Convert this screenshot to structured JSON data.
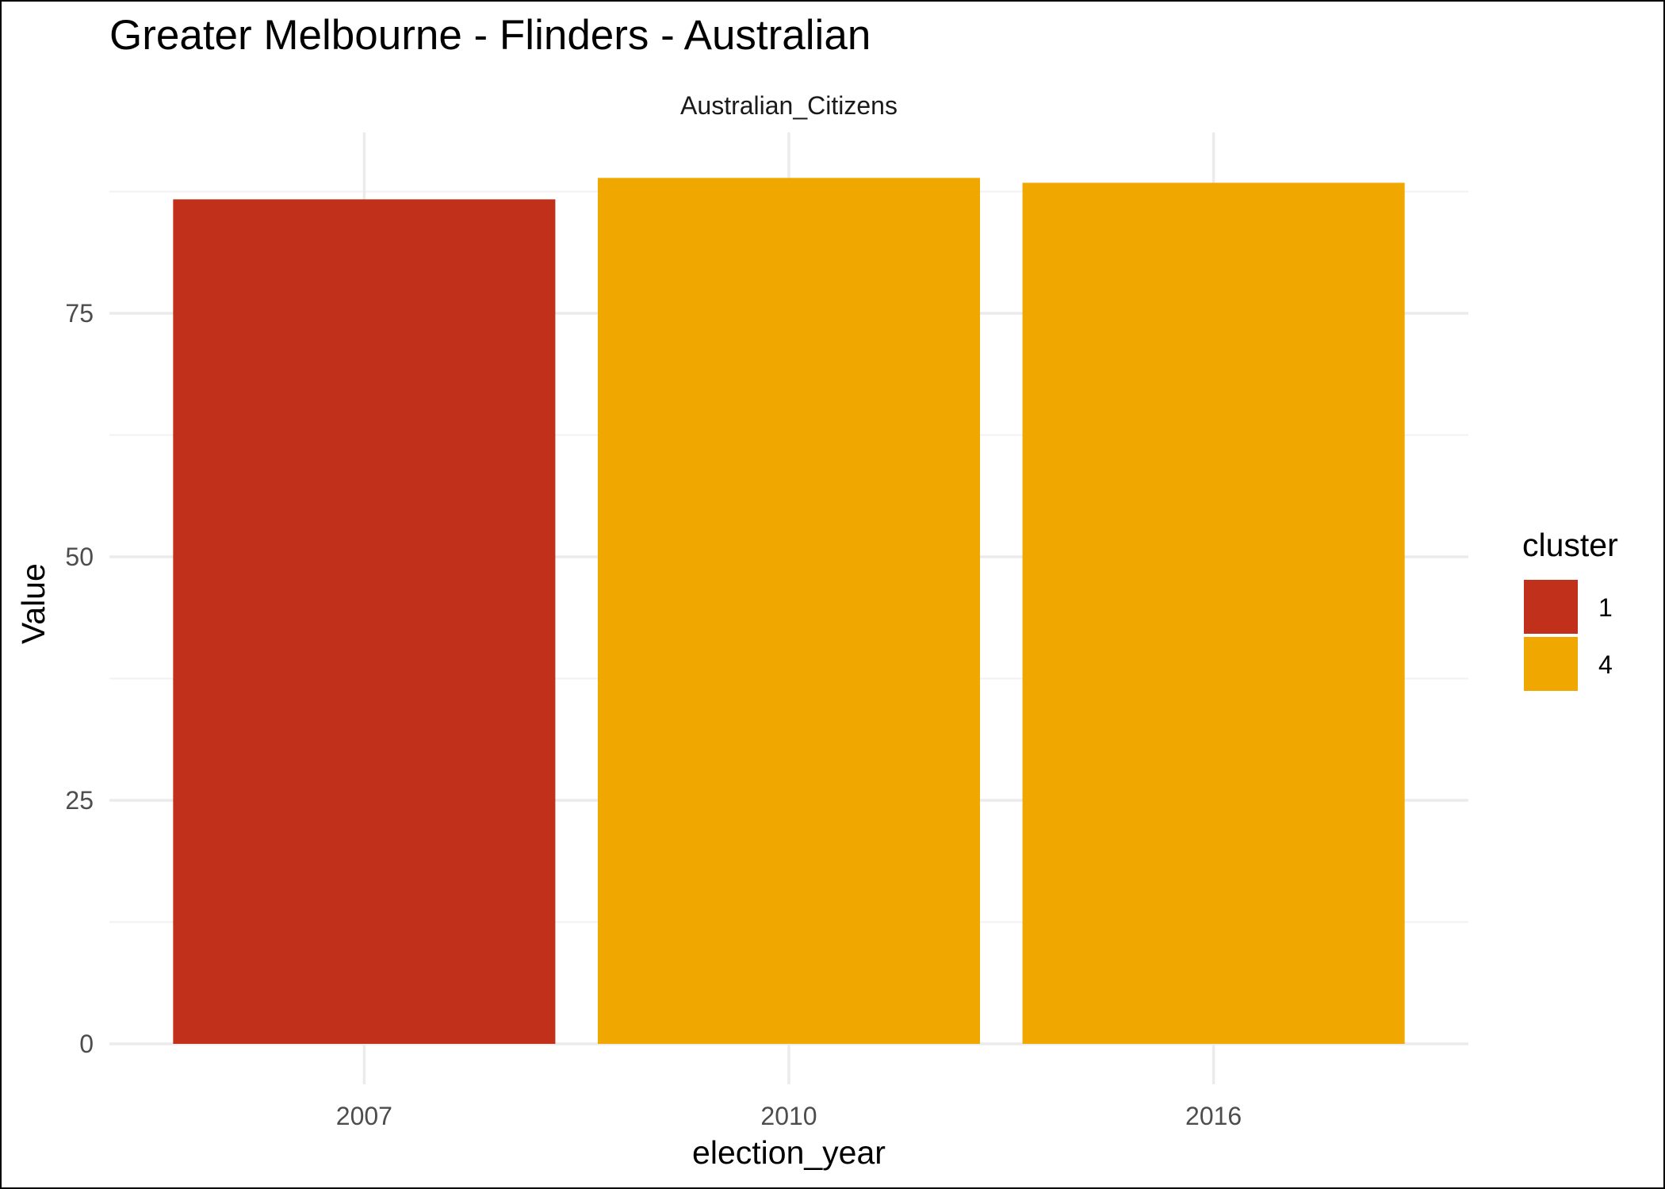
{
  "chart_data": {
    "type": "bar",
    "title": "Greater Melbourne - Flinders - Australian",
    "facet_label": "Australian_Citizens",
    "xlabel": "election_year",
    "ylabel": "Value",
    "categories": [
      "2007",
      "2010",
      "2016"
    ],
    "values": [
      86.7,
      88.9,
      88.4
    ],
    "cluster": [
      "1",
      "4",
      "4"
    ],
    "ylim": [
      0,
      92
    ],
    "yticks": [
      0,
      25,
      50,
      75
    ],
    "grid": true,
    "legend": {
      "title": "cluster",
      "position": "right",
      "entries": [
        {
          "label": "1",
          "color": "#C0301A"
        },
        {
          "label": "4",
          "color": "#F0A800"
        }
      ]
    }
  }
}
